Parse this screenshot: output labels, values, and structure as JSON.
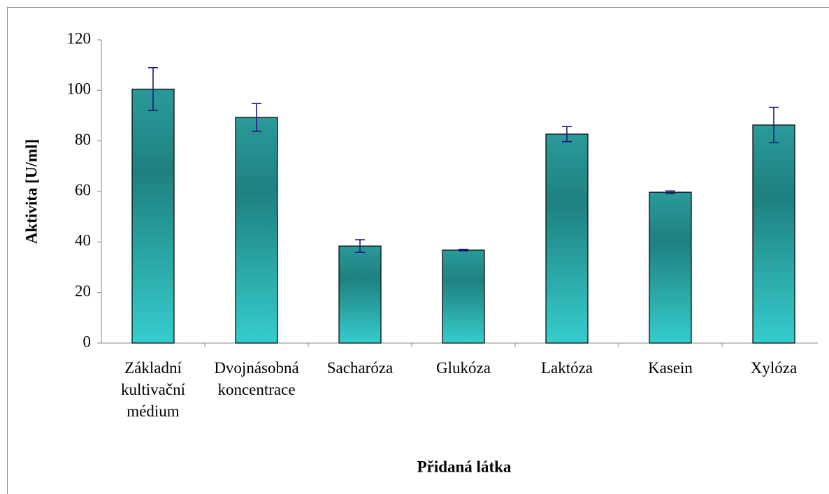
{
  "chart_data": {
    "type": "bar",
    "xlabel": "Přidaná látka",
    "ylabel": "Aktivita [U/ml]",
    "categories": [
      "Základní kultivační médium",
      "Dvojnásobná koncentrace",
      "Sacharóza",
      "Glukóza",
      "Laktóza",
      "Kasein",
      "Xylóza"
    ],
    "values": [
      100.5,
      89.3,
      38.4,
      36.8,
      82.7,
      59.7,
      86.3
    ],
    "errors": [
      8.5,
      5.5,
      2.5,
      0.3,
      3,
      0.5,
      7
    ],
    "color": "#1f8080",
    "error_color": "#1a1a80",
    "ylim": [
      0,
      120
    ],
    "yticks": [
      0,
      20,
      40,
      60,
      80,
      100,
      120
    ],
    "grid": false
  }
}
